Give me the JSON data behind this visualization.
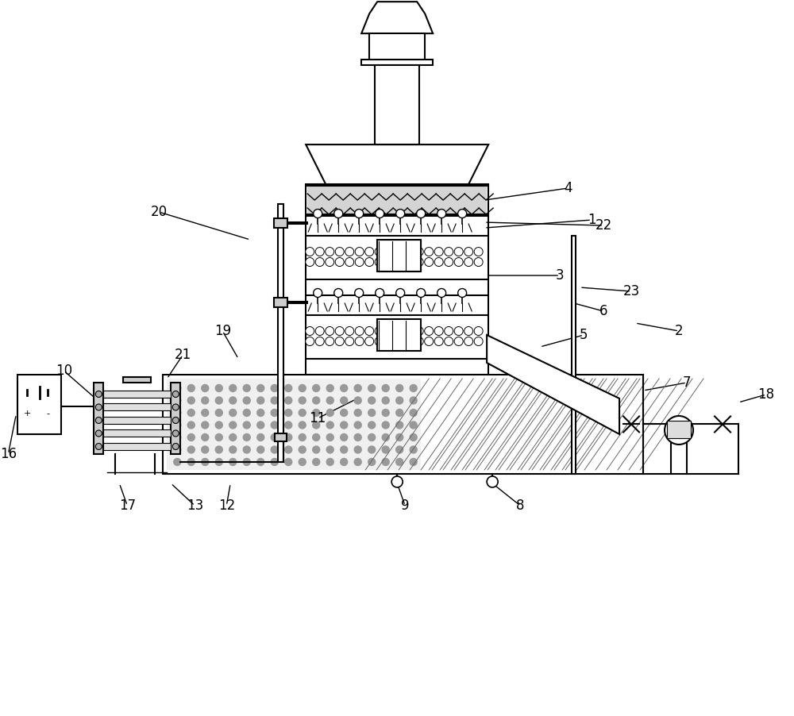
{
  "bg_color": "#ffffff",
  "line_color": "#000000",
  "line_width": 1.5,
  "fill_light": "#e8e8e8",
  "fill_medium": "#cccccc",
  "fill_dark": "#999999"
}
